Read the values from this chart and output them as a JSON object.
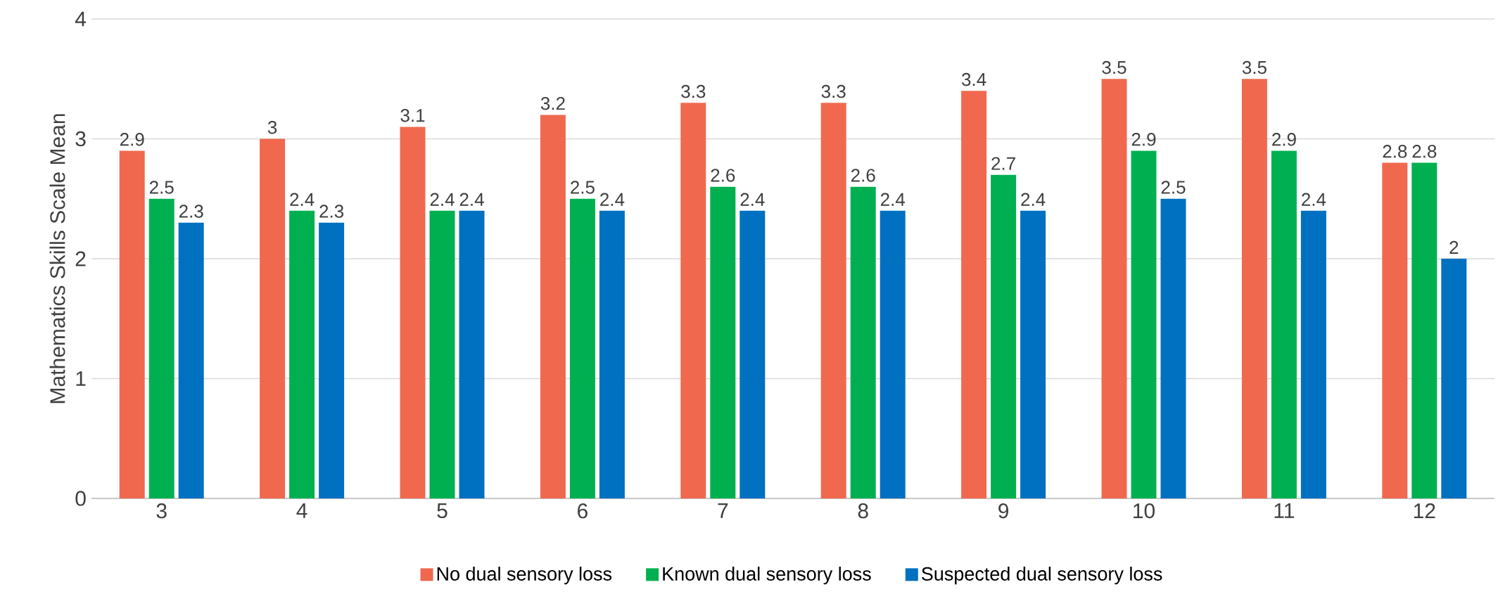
{
  "chart_data": {
    "type": "bar",
    "ylabel": "Mathematics Skills Scale Mean",
    "categories": [
      "3",
      "4",
      "5",
      "6",
      "7",
      "8",
      "9",
      "10",
      "11",
      "12"
    ],
    "series": [
      {
        "name": "No dual sensory loss",
        "color": "#f0694f",
        "values": [
          2.9,
          3,
          3.1,
          3.2,
          3.3,
          3.3,
          3.4,
          3.5,
          3.5,
          2.8
        ]
      },
      {
        "name": "Known dual sensory loss",
        "color": "#00b050",
        "values": [
          2.5,
          2.4,
          2.4,
          2.5,
          2.6,
          2.6,
          2.7,
          2.9,
          2.9,
          2.8
        ]
      },
      {
        "name": "Suspected dual sensory loss",
        "color": "#0070c0",
        "values": [
          2.3,
          2.3,
          2.4,
          2.4,
          2.4,
          2.4,
          2.4,
          2.5,
          2.4,
          2
        ]
      }
    ],
    "ylim": [
      0,
      4
    ],
    "yticks": [
      0,
      1,
      2,
      3,
      4
    ],
    "grid": "y",
    "legend": "bottom",
    "data_labels": true
  }
}
